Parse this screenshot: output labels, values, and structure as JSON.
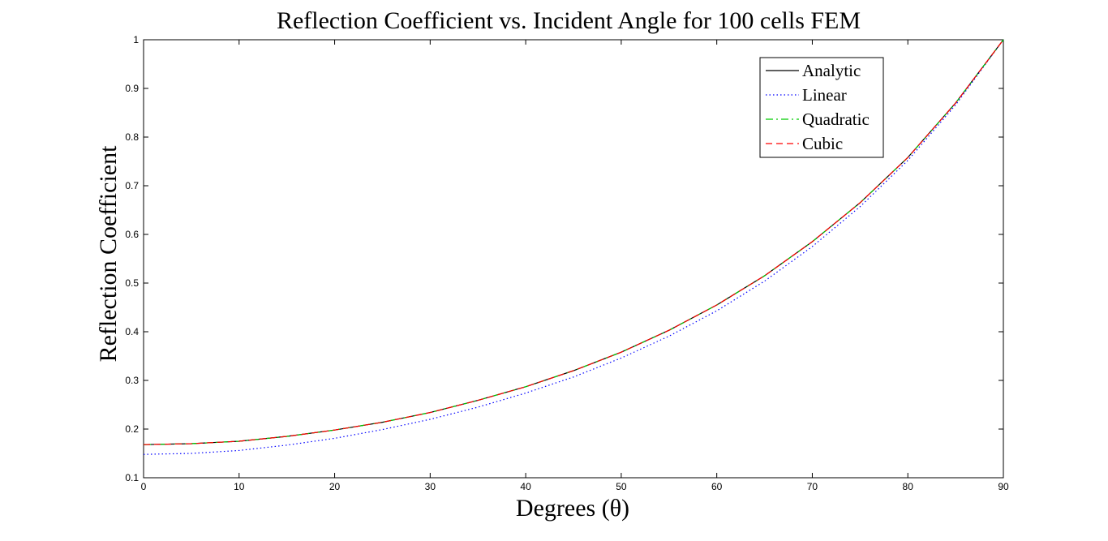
{
  "chart_data": {
    "type": "line",
    "title": "Reflection Coefficient vs. Incident Angle for 100 cells FEM",
    "xlabel": "Degrees (θ)",
    "ylabel": "Reflection Coefficient",
    "xlim": [
      0,
      90
    ],
    "ylim": [
      0.1,
      1
    ],
    "x_ticks": [
      0,
      10,
      20,
      30,
      40,
      50,
      60,
      70,
      80,
      90
    ],
    "y_ticks": [
      0.1,
      0.2,
      0.3,
      0.4,
      0.5,
      0.6,
      0.7,
      0.8,
      0.9,
      1
    ],
    "x_tick_labels": [
      "0",
      "10",
      "20",
      "30",
      "40",
      "50",
      "60",
      "70",
      "80",
      "90"
    ],
    "y_tick_labels": [
      "0.1",
      "0.2",
      "0.3",
      "0.4",
      "0.5",
      "0.6",
      "0.7",
      "0.8",
      "0.9",
      "1"
    ],
    "grid": false,
    "legend_position": "top-right",
    "x": [
      0,
      5,
      10,
      15,
      20,
      25,
      30,
      35,
      40,
      45,
      50,
      55,
      60,
      65,
      70,
      75,
      80,
      85,
      90
    ],
    "series": [
      {
        "name": "Analytic",
        "color": "#000000",
        "dash": "solid",
        "values": [
          0.168,
          0.17,
          0.175,
          0.185,
          0.198,
          0.214,
          0.234,
          0.259,
          0.287,
          0.32,
          0.358,
          0.403,
          0.455,
          0.515,
          0.585,
          0.665,
          0.758,
          0.87,
          1.0
        ]
      },
      {
        "name": "Linear",
        "color": "#0000ff",
        "dash": "dotted",
        "values": [
          0.148,
          0.15,
          0.156,
          0.167,
          0.181,
          0.199,
          0.22,
          0.245,
          0.274,
          0.307,
          0.346,
          0.391,
          0.443,
          0.504,
          0.575,
          0.657,
          0.752,
          0.866,
          1.0
        ]
      },
      {
        "name": "Quadratic",
        "color": "#00cc00",
        "dash": "dashdot",
        "values": [
          0.168,
          0.17,
          0.175,
          0.185,
          0.198,
          0.214,
          0.234,
          0.259,
          0.287,
          0.32,
          0.358,
          0.403,
          0.455,
          0.515,
          0.585,
          0.665,
          0.758,
          0.87,
          1.0
        ]
      },
      {
        "name": "Cubic",
        "color": "#ff0000",
        "dash": "dashed",
        "values": [
          0.168,
          0.17,
          0.175,
          0.185,
          0.198,
          0.214,
          0.234,
          0.259,
          0.287,
          0.32,
          0.358,
          0.403,
          0.455,
          0.515,
          0.585,
          0.665,
          0.758,
          0.87,
          1.0
        ]
      }
    ]
  }
}
